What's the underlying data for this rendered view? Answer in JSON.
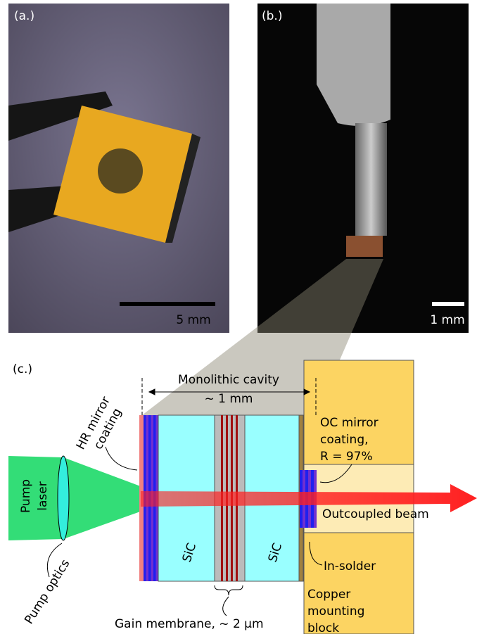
{
  "panel_a": {
    "label": "(a.)",
    "scale_bar": "5 mm"
  },
  "panel_b": {
    "label": "(b.)",
    "scale_bar": "1 mm"
  },
  "panel_c": {
    "label": "(c.)",
    "cavity": {
      "title": "Monolithic cavity",
      "length": "~ 1 mm"
    },
    "hr_mirror": [
      "HR mirror",
      "coating"
    ],
    "oc_mirror": [
      "OC mirror",
      "coating,",
      "R = 97%"
    ],
    "pump_laser": [
      "Pump",
      "laser"
    ],
    "outcoupled_beam": "Outcoupled beam",
    "sic_left": "SiC",
    "sic_right": "SiC",
    "in_solder": "In-solder",
    "copper_block": [
      "Copper",
      "mounting",
      "block"
    ],
    "pump_optics": "Pump optics",
    "gain_membrane": "Gain membrane, ~ 2 μm"
  }
}
